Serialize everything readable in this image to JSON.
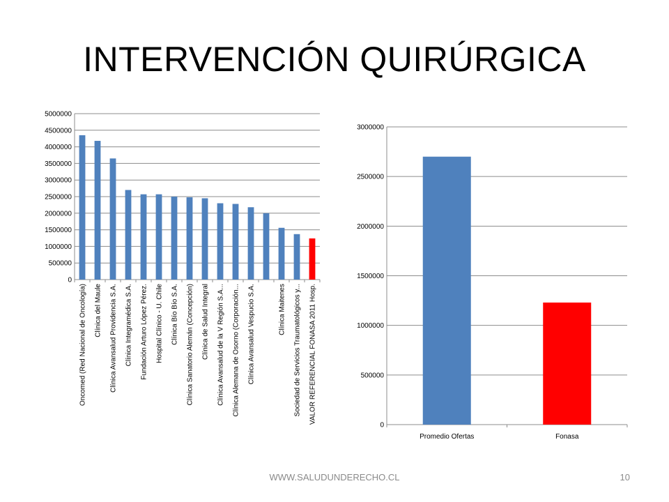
{
  "slide": {
    "title": "INTERVENCIÓN QUIRÚRGICA",
    "footer": "WWW.SALUDUNDERECHO.CL",
    "page_number": "10"
  },
  "chart_data": [
    {
      "type": "bar",
      "title": "",
      "xlabel": "",
      "ylabel": "",
      "ylim": [
        0,
        5000000
      ],
      "yticks": [
        0,
        500000,
        1000000,
        1500000,
        2000000,
        2500000,
        3000000,
        3500000,
        4000000,
        4500000,
        5000000
      ],
      "grid": true,
      "legend": "none",
      "categories": [
        "Oncomed (Red Nacional de Oncología)",
        "Clínica del Maule",
        "Clínica Avansalud Providencia S.A.",
        "Clínica Integramédica S.A.",
        "Fundación Arturo López Pérez.",
        "Hospital Clínico - U. Chile",
        "Clínica Bío Bío S.A.",
        "Clínica Sanatorio Alemán (Concepción)",
        "Clínica de Salud Integral",
        "Clínica Avansalud de la V Región S.A...",
        "Clínica Alemana de Osorno (Corporación...",
        "Clínica Avansalud Vespucio S.A.",
        "",
        "Clínica Maitenes",
        "Sociedad de Servicios Traumatológicos y...",
        "VALOR REFERENCIAL FONASA 2011 Hosp."
      ],
      "values": [
        4350000,
        4180000,
        3650000,
        2700000,
        2570000,
        2570000,
        2500000,
        2480000,
        2450000,
        2300000,
        2280000,
        2180000,
        2000000,
        1560000,
        1370000,
        1240000
      ],
      "colors": [
        "#4F81BD",
        "#4F81BD",
        "#4F81BD",
        "#4F81BD",
        "#4F81BD",
        "#4F81BD",
        "#4F81BD",
        "#4F81BD",
        "#4F81BD",
        "#4F81BD",
        "#4F81BD",
        "#4F81BD",
        "#4F81BD",
        "#4F81BD",
        "#4F81BD",
        "#FF0000"
      ]
    },
    {
      "type": "bar",
      "title": "",
      "xlabel": "",
      "ylabel": "",
      "ylim": [
        0,
        3000000
      ],
      "yticks": [
        0,
        500000,
        1000000,
        1500000,
        2000000,
        2500000,
        3000000
      ],
      "grid": true,
      "legend": "none",
      "categories": [
        "Promedio Ofertas",
        "Fonasa"
      ],
      "values": [
        2700000,
        1230000
      ],
      "colors": [
        "#4F81BD",
        "#FF0000"
      ]
    }
  ]
}
